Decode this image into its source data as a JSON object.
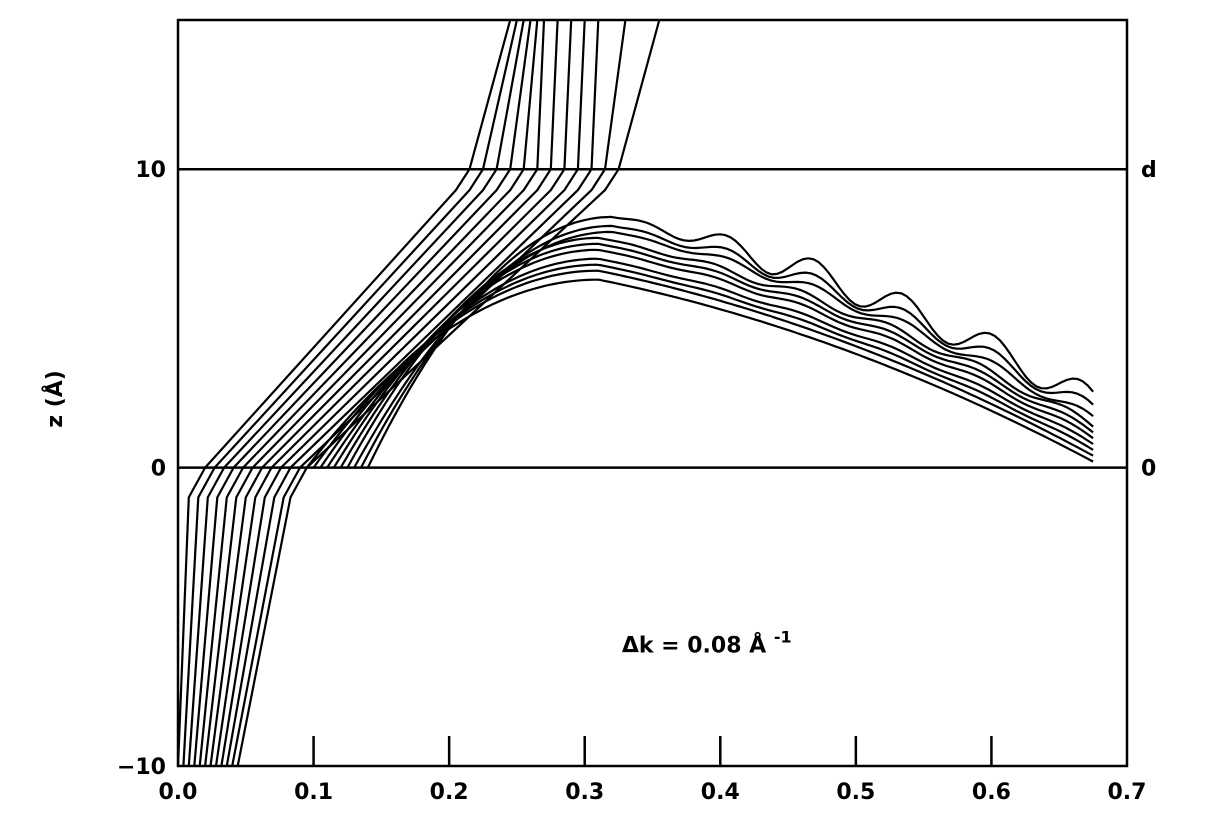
{
  "chart_data": {
    "type": "line",
    "title": "",
    "xlabel": "",
    "ylabel": "z (Å)",
    "xlim": [
      0.0,
      0.7
    ],
    "ylim": [
      -10,
      15
    ],
    "grid": false,
    "x_ticks": [
      "0.0",
      "0.1",
      "0.2",
      "0.3",
      "0.4",
      "0.5",
      "0.6",
      "0.7"
    ],
    "y_ticks": [
      "-10",
      "0",
      "10"
    ],
    "reference_lines": [
      {
        "y": 0,
        "label": "0"
      },
      {
        "y": 10,
        "label": "d"
      }
    ],
    "annotation": {
      "text": "Δk = 0.08 Å",
      "superscript": "-1",
      "x": 0.39,
      "y": -6.2
    },
    "curve_families": {
      "transmitted": {
        "count": 12,
        "x_at_bottom": [
          0.0,
          0.004,
          0.008,
          0.012,
          0.016,
          0.02,
          0.024,
          0.028,
          0.032,
          0.036,
          0.04,
          0.044
        ],
        "x_at_z0": [
          0.02,
          0.027,
          0.034,
          0.041,
          0.048,
          0.055,
          0.062,
          0.069,
          0.076,
          0.083,
          0.09,
          0.095
        ],
        "x_at_z10": [
          0.215,
          0.225,
          0.235,
          0.245,
          0.255,
          0.265,
          0.275,
          0.285,
          0.295,
          0.305,
          0.315,
          0.325
        ],
        "x_at_top": [
          0.245,
          0.25,
          0.255,
          0.26,
          0.265,
          0.27,
          0.28,
          0.29,
          0.3,
          0.31,
          0.33,
          0.355
        ]
      },
      "reflected": {
        "count": 10,
        "x_start": [
          0.095,
          0.1,
          0.105,
          0.11,
          0.115,
          0.12,
          0.125,
          0.13,
          0.135,
          0.14
        ],
        "z_start": [
          0,
          0,
          0,
          0,
          0,
          0,
          0,
          0,
          0,
          0
        ],
        "peak_x": [
          0.31,
          0.31,
          0.31,
          0.31,
          0.31,
          0.31,
          0.31,
          0.32,
          0.32,
          0.32
        ],
        "peak_z": [
          6.3,
          6.6,
          6.8,
          7.0,
          7.3,
          7.5,
          7.7,
          7.9,
          8.1,
          8.4
        ],
        "x_end": 0.675,
        "z_end": [
          0.2,
          0.4,
          0.6,
          0.8,
          1.0,
          1.2,
          1.4,
          1.6,
          1.9,
          2.2
        ],
        "oscillation_amplitude": [
          0.0,
          0.0,
          0.03,
          0.05,
          0.08,
          0.1,
          0.14,
          0.18,
          0.3,
          0.5
        ]
      }
    }
  }
}
